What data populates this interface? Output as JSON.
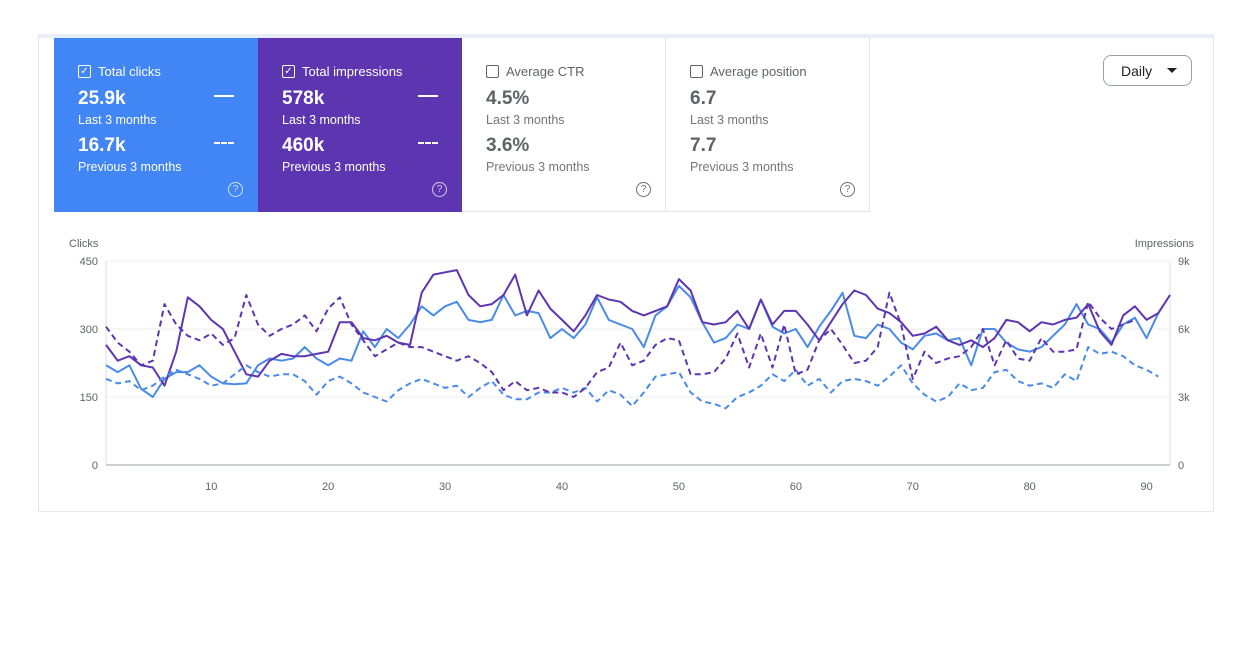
{
  "cards": [
    {
      "label": "Total clicks",
      "checked": true,
      "value_current": "25.9k",
      "label_current": "Last 3 months",
      "value_previous": "16.7k",
      "label_previous": "Previous 3 months",
      "color": "#4285f4"
    },
    {
      "label": "Total impressions",
      "checked": true,
      "value_current": "578k",
      "label_current": "Last 3 months",
      "value_previous": "460k",
      "label_previous": "Previous 3 months",
      "color": "#5e35b1"
    },
    {
      "label": "Average CTR",
      "checked": false,
      "value_current": "4.5%",
      "label_current": "Last 3 months",
      "value_previous": "3.6%",
      "label_previous": "Previous 3 months",
      "color": "#ffffff"
    },
    {
      "label": "Average position",
      "checked": false,
      "value_current": "6.7",
      "label_current": "Last 3 months",
      "value_previous": "7.7",
      "label_previous": "Previous 3 months",
      "color": "#ffffff"
    }
  ],
  "icons": {
    "checkbox_checked": "checkbox-checked-icon",
    "checkbox_empty": "checkbox-empty-icon",
    "help": "help-circle-icon",
    "dropdown": "caret-down-icon"
  },
  "granularity": {
    "selected": "Daily"
  },
  "chart_data": {
    "type": "line",
    "xlabel": "",
    "ylabel_left": "Clicks",
    "ylabel_right": "Impressions",
    "x_range": [
      1,
      92
    ],
    "xticks": [
      10,
      20,
      30,
      40,
      50,
      60,
      70,
      80,
      90
    ],
    "y_left_ticks": [
      "0",
      "150",
      "300",
      "450"
    ],
    "y_left_lim": [
      0,
      450
    ],
    "y_right_ticks": [
      "0",
      "3k",
      "6k",
      "9k"
    ],
    "y_right_lim": [
      0,
      9000
    ],
    "grid": true,
    "series": [
      {
        "axis": "left",
        "style": "solid",
        "color": "#4a8be8",
        "start_x": 1,
        "values": [
          220,
          205,
          220,
          168,
          150,
          190,
          205,
          205,
          220,
          195,
          180,
          178,
          180,
          220,
          235,
          230,
          235,
          260,
          235,
          220,
          235,
          230,
          295,
          260,
          300,
          280,
          310,
          350,
          330,
          350,
          360,
          320,
          315,
          320,
          375,
          330,
          340,
          335,
          280,
          300,
          280,
          310,
          370,
          320,
          310,
          300,
          260,
          330,
          350,
          395,
          370,
          315,
          270,
          280,
          310,
          300,
          365,
          305,
          290,
          300,
          260,
          305,
          340,
          380,
          285,
          280,
          310,
          300,
          270,
          255,
          285,
          290,
          275,
          280,
          220,
          300,
          300,
          270,
          255,
          250,
          260,
          285,
          310,
          355,
          310,
          300,
          270,
          310,
          325,
          280,
          335
        ]
      },
      {
        "axis": "right",
        "style": "solid",
        "color": "#5e35b1",
        "start_x": 1,
        "values": [
          5300,
          4600,
          4800,
          4400,
          4300,
          3500,
          5000,
          7400,
          7000,
          6400,
          6000,
          5000,
          4000,
          3900,
          4600,
          4900,
          4800,
          4800,
          4900,
          5000,
          6300,
          6300,
          5600,
          5500,
          5700,
          5400,
          5300,
          7600,
          8400,
          8500,
          8600,
          7500,
          7000,
          7100,
          7500,
          8400,
          6600,
          7700,
          6900,
          6400,
          5900,
          6600,
          7500,
          7300,
          7200,
          6800,
          6600,
          6800,
          7000,
          8200,
          7700,
          6300,
          6200,
          6300,
          6800,
          6000,
          7300,
          6200,
          6800,
          6800,
          6200,
          5500,
          6300,
          7100,
          7700,
          7500,
          6900,
          6700,
          6300,
          5700,
          5800,
          6100,
          5500,
          5300,
          5500,
          5200,
          5600,
          6400,
          6300,
          5900,
          6300,
          6200,
          6400,
          6500,
          7100,
          5900,
          5300,
          6600,
          7000,
          6400,
          6700,
          7500
        ]
      },
      {
        "axis": "left",
        "style": "dashed",
        "color": "#4a8be8",
        "start_x": 1,
        "values": [
          190,
          180,
          185,
          165,
          175,
          195,
          210,
          200,
          190,
          175,
          180,
          200,
          220,
          205,
          195,
          200,
          200,
          185,
          155,
          185,
          195,
          180,
          160,
          150,
          140,
          165,
          180,
          190,
          180,
          170,
          175,
          150,
          170,
          185,
          155,
          145,
          145,
          160,
          160,
          170,
          160,
          170,
          140,
          165,
          155,
          130,
          160,
          195,
          200,
          205,
          160,
          140,
          135,
          125,
          150,
          160,
          175,
          200,
          185,
          210,
          175,
          190,
          160,
          185,
          190,
          185,
          175,
          195,
          220,
          180,
          155,
          140,
          150,
          180,
          165,
          170,
          205,
          210,
          185,
          175,
          180,
          170,
          200,
          185,
          260,
          245,
          250,
          240,
          220,
          210,
          195
        ]
      },
      {
        "axis": "right",
        "style": "dashed",
        "color": "#5e35b1",
        "start_x": 1,
        "values": [
          6100,
          5400,
          5000,
          4400,
          4600,
          7100,
          6200,
          5700,
          5500,
          5800,
          5300,
          5600,
          7500,
          6200,
          5700,
          6000,
          6200,
          6600,
          5900,
          6900,
          7400,
          6200,
          5500,
          4800,
          5100,
          5400,
          5200,
          5200,
          5000,
          4800,
          4600,
          4800,
          4500,
          4100,
          3300,
          3700,
          3300,
          3400,
          3200,
          3200,
          3000,
          3400,
          4100,
          4300,
          5400,
          4400,
          4600,
          5300,
          5600,
          5500,
          4000,
          4000,
          4100,
          4700,
          5800,
          4300,
          5800,
          4300,
          6200,
          4000,
          4200,
          5500,
          6000,
          5300,
          4500,
          4600,
          5200,
          7600,
          6200,
          3800,
          5000,
          4500,
          4700,
          4800,
          5200,
          6000,
          4400,
          5500,
          4700,
          4600,
          5600,
          5000,
          5000,
          5100,
          7200,
          6500,
          6000,
          6200,
          6400
        ]
      }
    ]
  }
}
